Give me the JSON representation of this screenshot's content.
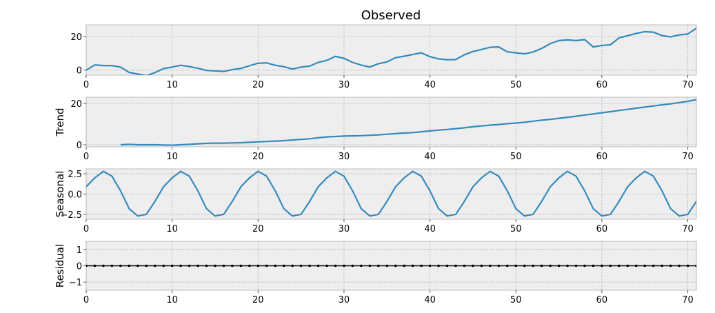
{
  "chart_data": [
    {
      "type": "line",
      "title": "Observed",
      "ylabel": "",
      "xlim": [
        0,
        71
      ],
      "ylim": [
        -3,
        27
      ],
      "xticks": [
        "0",
        "10",
        "20",
        "30",
        "40",
        "50",
        "60",
        "70"
      ],
      "yticks": [
        "0",
        "20"
      ],
      "ytick_values": [
        0,
        20
      ],
      "grid": true,
      "color": "#348abd",
      "y": [
        0.0,
        3.1,
        2.7,
        2.7,
        1.8,
        -1.4,
        -2.3,
        -3.3,
        -1.5,
        0.9,
        1.8,
        2.9,
        2.1,
        1.1,
        -0.2,
        -0.5,
        -0.8,
        0.3,
        1.0,
        2.6,
        4.1,
        4.3,
        2.9,
        2.0,
        0.6,
        1.8,
        2.4,
        4.6,
        5.8,
        8.2,
        7.0,
        4.6,
        3.0,
        1.8,
        3.8,
        4.9,
        7.4,
        8.3,
        9.3,
        10.3,
        8.0,
        6.7,
        6.2,
        6.3,
        9.1,
        11.1,
        12.3,
        13.6,
        13.8,
        10.9,
        10.3,
        9.7,
        10.8,
        12.9,
        15.8,
        17.6,
        18.0,
        17.6,
        18.2,
        13.8,
        14.7,
        15.1,
        19.2,
        20.5,
        21.9,
        22.9,
        22.6,
        20.6,
        19.8,
        21.0,
        21.5,
        25.0
      ]
    },
    {
      "type": "line",
      "title": "",
      "ylabel": "Trend",
      "xlim": [
        0,
        71
      ],
      "ylim": [
        -1,
        23
      ],
      "xticks": [
        "0",
        "10",
        "20",
        "30",
        "40",
        "50",
        "60",
        "70"
      ],
      "yticks": [
        "0",
        "20"
      ],
      "ytick_values": [
        0,
        20
      ],
      "grid": true,
      "color": "#348abd",
      "x_start": 4,
      "y": [
        0.0,
        0.2,
        0.0,
        0.0,
        0.0,
        -0.1,
        -0.2,
        0.0,
        0.2,
        0.5,
        0.7,
        0.8,
        0.8,
        0.9,
        1.0,
        1.2,
        1.4,
        1.6,
        1.8,
        2.0,
        2.3,
        2.6,
        2.9,
        3.4,
        3.8,
        4.0,
        4.2,
        4.3,
        4.4,
        4.6,
        4.8,
        5.1,
        5.4,
        5.7,
        5.9,
        6.3,
        6.7,
        7.1,
        7.4,
        7.8,
        8.2,
        8.7,
        9.1,
        9.5,
        9.8,
        10.2,
        10.5,
        10.9,
        11.4,
        11.9,
        12.3,
        12.8,
        13.3,
        13.8,
        14.4,
        14.9,
        15.5,
        16.0,
        16.6,
        17.1,
        17.7,
        18.2,
        18.8,
        19.3,
        19.8,
        20.4,
        21.0,
        21.8
      ]
    },
    {
      "type": "line",
      "title": "",
      "ylabel": "Seasonal",
      "xlim": [
        0,
        71
      ],
      "ylim": [
        -3.1,
        3.1
      ],
      "xticks": [
        "0",
        "10",
        "20",
        "30",
        "40",
        "50",
        "60",
        "70"
      ],
      "yticks": [
        "2.5",
        "0.0",
        "−2.5"
      ],
      "ytick_values": [
        2.5,
        0.0,
        -2.5
      ],
      "grid": true,
      "color": "#348abd",
      "y": [
        0.9,
        2.0,
        2.8,
        2.2,
        0.4,
        -1.8,
        -2.7,
        -2.5,
        -0.9,
        0.9,
        2.0,
        2.8,
        2.2,
        0.4,
        -1.8,
        -2.7,
        -2.5,
        -0.9,
        0.9,
        2.0,
        2.8,
        2.2,
        0.4,
        -1.8,
        -2.7,
        -2.5,
        -0.9,
        0.9,
        2.0,
        2.8,
        2.2,
        0.4,
        -1.8,
        -2.7,
        -2.5,
        -0.9,
        0.9,
        2.0,
        2.8,
        2.2,
        0.4,
        -1.8,
        -2.7,
        -2.5,
        -0.9,
        0.9,
        2.0,
        2.8,
        2.2,
        0.4,
        -1.8,
        -2.7,
        -2.5,
        -0.9,
        0.9,
        2.0,
        2.8,
        2.2,
        0.4,
        -1.8,
        -2.7,
        -2.5,
        -0.9,
        0.9,
        2.0,
        2.8,
        2.2,
        0.4,
        -1.8,
        -2.7,
        -2.5,
        -0.9
      ]
    },
    {
      "type": "scatter",
      "title": "",
      "ylabel": "Residual",
      "xlim": [
        0,
        71
      ],
      "ylim": [
        -1.5,
        1.5
      ],
      "xticks": [
        "0",
        "10",
        "20",
        "30",
        "40",
        "50",
        "60",
        "70"
      ],
      "yticks": [
        "1",
        "0",
        "−1"
      ],
      "ytick_values": [
        1,
        0,
        -1
      ],
      "grid": true,
      "color": "#000000",
      "residual_value": 0
    }
  ]
}
